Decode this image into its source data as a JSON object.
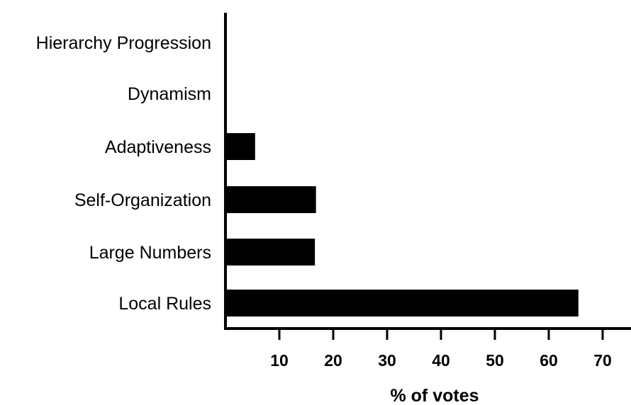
{
  "chart_data": {
    "type": "bar",
    "orientation": "horizontal",
    "categories": [
      "Hierarchy Progression",
      "Dynamism",
      "Adaptiveness",
      "Self-Organization",
      "Large Numbers",
      "Local Rules"
    ],
    "values": [
      0,
      0,
      5.5,
      16.8,
      16.6,
      65.5
    ],
    "xlabel": "% of votes",
    "ylabel": "",
    "title": "",
    "xlim": [
      0,
      73
    ],
    "xticks": [
      10,
      20,
      30,
      40,
      50,
      60,
      70
    ],
    "grid": false,
    "bar_color": "#000000"
  }
}
